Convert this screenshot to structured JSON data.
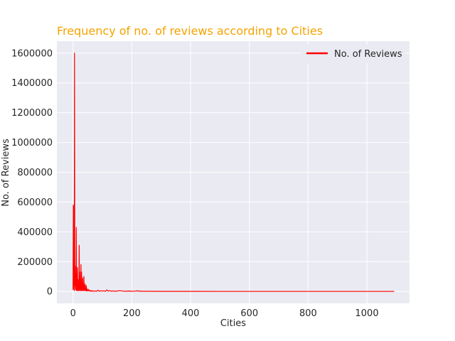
{
  "chart_data": {
    "type": "line",
    "title": "Frequency of no. of reviews according to Cities",
    "xlabel": "Cities",
    "ylabel": "No. of Reviews",
    "xlim": [
      -55,
      1145
    ],
    "ylim": [
      -80000,
      1680000
    ],
    "xticks": [
      0,
      200,
      400,
      600,
      800,
      1000
    ],
    "yticks": [
      0,
      200000,
      400000,
      600000,
      800000,
      1000000,
      1200000,
      1400000,
      1600000
    ],
    "grid": true,
    "legend_position": "top-right",
    "series": [
      {
        "name": "No. of Reviews",
        "color": "#ff0000",
        "x": [
          0,
          1,
          2,
          3,
          4,
          5,
          6,
          7,
          8,
          9,
          10,
          11,
          12,
          13,
          14,
          15,
          16,
          17,
          18,
          19,
          20,
          21,
          22,
          23,
          24,
          25,
          26,
          27,
          28,
          29,
          30,
          31,
          32,
          33,
          34,
          35,
          36,
          37,
          38,
          39,
          40,
          41,
          42,
          43,
          44,
          45,
          46,
          47,
          48,
          49,
          50,
          52,
          54,
          56,
          58,
          60,
          62,
          64,
          66,
          68,
          70,
          75,
          80,
          85,
          90,
          95,
          100,
          105,
          110,
          115,
          120,
          125,
          130,
          135,
          140,
          150,
          160,
          170,
          180,
          190,
          200,
          210,
          220,
          230,
          250,
          300,
          400,
          500,
          600,
          700,
          800,
          900,
          1000,
          1093
        ],
        "values": [
          10000,
          580000,
          20000,
          570000,
          5000,
          1600000,
          40000,
          170000,
          10000,
          80000,
          15000,
          430000,
          5000,
          120000,
          10000,
          160000,
          5000,
          80000,
          5000,
          20000,
          10000,
          310000,
          5000,
          130000,
          10000,
          60000,
          5000,
          180000,
          5000,
          130000,
          10000,
          40000,
          5000,
          90000,
          5000,
          30000,
          10000,
          100000,
          5000,
          15000,
          10000,
          50000,
          5000,
          20000,
          5000,
          40000,
          3000,
          20000,
          3000,
          10000,
          5000,
          15000,
          3000,
          8000,
          2000,
          6000,
          1000,
          5000,
          1000,
          4000,
          2000,
          3000,
          1000,
          8000,
          1000,
          5000,
          2000,
          4000,
          1000,
          10000,
          2000,
          6000,
          1000,
          4000,
          1000,
          3000,
          5000,
          2000,
          1000,
          3000,
          1000,
          2000,
          4000,
          1000,
          1000,
          500,
          300,
          200,
          200,
          100,
          100,
          100,
          100,
          100
        ]
      }
    ]
  }
}
